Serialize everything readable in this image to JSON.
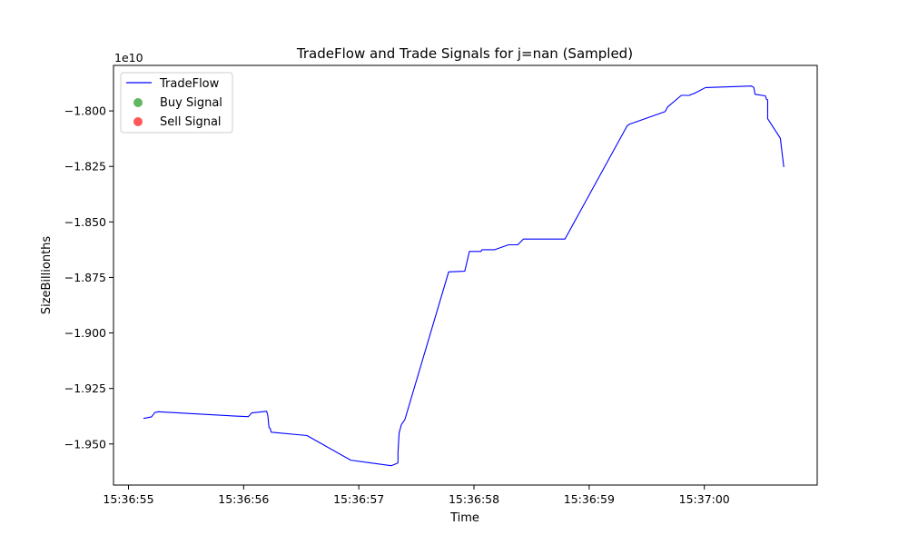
{
  "chart_data": {
    "type": "line",
    "title": "TradeFlow and Trade Signals for j=nan (Sampled)",
    "xlabel": "Time",
    "ylabel": "SizeBillionths",
    "y_offset_text": "1e10",
    "y_multiplier": 10000000000,
    "x_tick_labels": [
      "15:36:55",
      "15:36:56",
      "15:36:57",
      "15:36:58",
      "15:36:59",
      "15:37:00"
    ],
    "x_tick_values": [
      0,
      1,
      2,
      3,
      4,
      5
    ],
    "x_units": "seconds after 15:36:55",
    "xlim": [
      -0.13,
      5.98
    ],
    "y_tick_labels": [
      "−1.800",
      "−1.825",
      "−1.850",
      "−1.875",
      "−1.900",
      "−1.925",
      "−1.950"
    ],
    "y_tick_values": [
      -1.8,
      -1.825,
      -1.85,
      -1.875,
      -1.9,
      -1.925,
      -1.95
    ],
    "ylim": [
      -1.9685,
      -1.7795
    ],
    "grid": false,
    "legend_position": "upper-left",
    "series": [
      {
        "name": "TradeFlow",
        "color": "#0000ff",
        "kind": "line",
        "points": [
          [
            0.13,
            -1.9385
          ],
          [
            0.2,
            -1.9378
          ],
          [
            0.23,
            -1.9358
          ],
          [
            0.26,
            -1.9355
          ],
          [
            0.95,
            -1.9375
          ],
          [
            1.04,
            -1.9377
          ],
          [
            1.07,
            -1.936
          ],
          [
            1.2,
            -1.9353
          ],
          [
            1.21,
            -1.9372
          ],
          [
            1.22,
            -1.9425
          ],
          [
            1.23,
            -1.943
          ],
          [
            1.24,
            -1.9447
          ],
          [
            1.55,
            -1.9462
          ],
          [
            1.93,
            -1.9573
          ],
          [
            2.28,
            -1.9598
          ],
          [
            2.33,
            -1.9588
          ],
          [
            2.34,
            -1.9585
          ],
          [
            2.34,
            -1.954
          ],
          [
            2.35,
            -1.945
          ],
          [
            2.37,
            -1.9412
          ],
          [
            2.38,
            -1.9405
          ],
          [
            2.4,
            -1.939
          ],
          [
            2.78,
            -1.8725
          ],
          [
            2.92,
            -1.8722
          ],
          [
            2.96,
            -1.8633
          ],
          [
            3.06,
            -1.8633
          ],
          [
            3.07,
            -1.8625
          ],
          [
            3.18,
            -1.8625
          ],
          [
            3.3,
            -1.8603
          ],
          [
            3.38,
            -1.8603
          ],
          [
            3.43,
            -1.8577
          ],
          [
            3.79,
            -1.8577
          ],
          [
            4.33,
            -1.8067
          ],
          [
            4.35,
            -1.806
          ],
          [
            4.66,
            -1.8003
          ],
          [
            4.68,
            -1.7983
          ],
          [
            4.8,
            -1.793
          ],
          [
            4.87,
            -1.793
          ],
          [
            4.89,
            -1.7925
          ],
          [
            4.91,
            -1.7922
          ],
          [
            5.01,
            -1.7895
          ],
          [
            5.41,
            -1.7888
          ],
          [
            5.43,
            -1.7895
          ],
          [
            5.44,
            -1.7925
          ],
          [
            5.53,
            -1.7932
          ],
          [
            5.54,
            -1.7948
          ],
          [
            5.55,
            -1.795
          ],
          [
            5.55,
            -1.8035
          ],
          [
            5.66,
            -1.8123
          ],
          [
            5.69,
            -1.8253
          ]
        ]
      },
      {
        "name": "Buy Signal",
        "color": "#2ca02c",
        "kind": "scatter",
        "points": []
      },
      {
        "name": "Sell Signal",
        "color": "#ff2020",
        "kind": "scatter",
        "points": []
      }
    ]
  }
}
